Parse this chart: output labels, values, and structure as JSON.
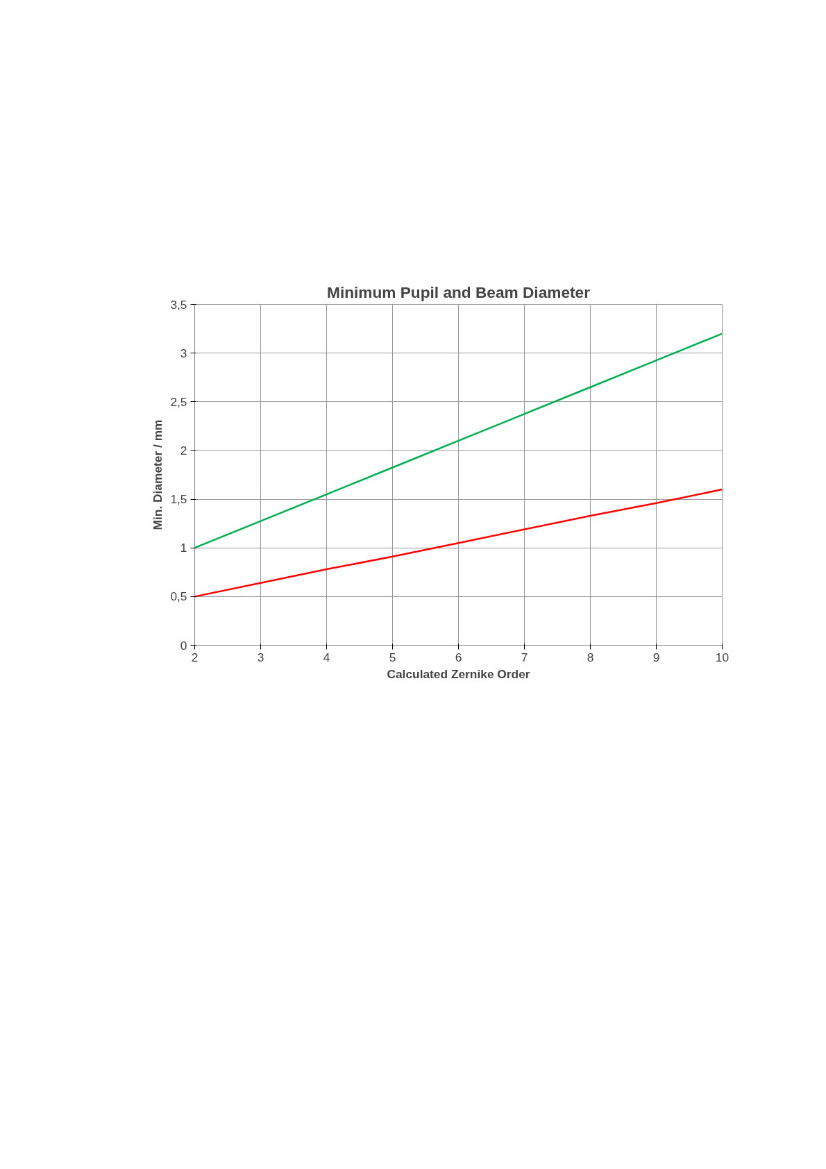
{
  "chart_data": {
    "type": "line",
    "title": "Minimum Pupil and Beam Diameter",
    "xlabel": "Calculated Zernike Order",
    "ylabel": "Min. Diameter / mm",
    "x": [
      2,
      3,
      4,
      5,
      6,
      7,
      8,
      9,
      10
    ],
    "series": [
      {
        "color": "#00b050",
        "values": [
          1,
          1.275,
          1.55,
          1.825,
          2.1,
          2.375,
          2.65,
          2.925,
          3.2
        ]
      },
      {
        "color": "#ff0000",
        "values": [
          0.5,
          0.64,
          0.78,
          0.91,
          1.05,
          1.19,
          1.33,
          1.46,
          1.6
        ]
      }
    ],
    "xlim": [
      2,
      10
    ],
    "xticks": [
      2,
      3,
      4,
      5,
      6,
      7,
      8,
      9,
      10
    ],
    "ylim": [
      0,
      3.5
    ],
    "yticks": [
      0,
      {
        "value": 0.5,
        "label": "0,5"
      },
      1,
      {
        "value": 1.5,
        "label": "1,5"
      },
      2,
      {
        "value": 2.5,
        "label": "2,5"
      },
      3,
      {
        "value": 3.5,
        "label": "3,5"
      }
    ],
    "grid": true,
    "marker": "none",
    "line_style": "solid"
  }
}
